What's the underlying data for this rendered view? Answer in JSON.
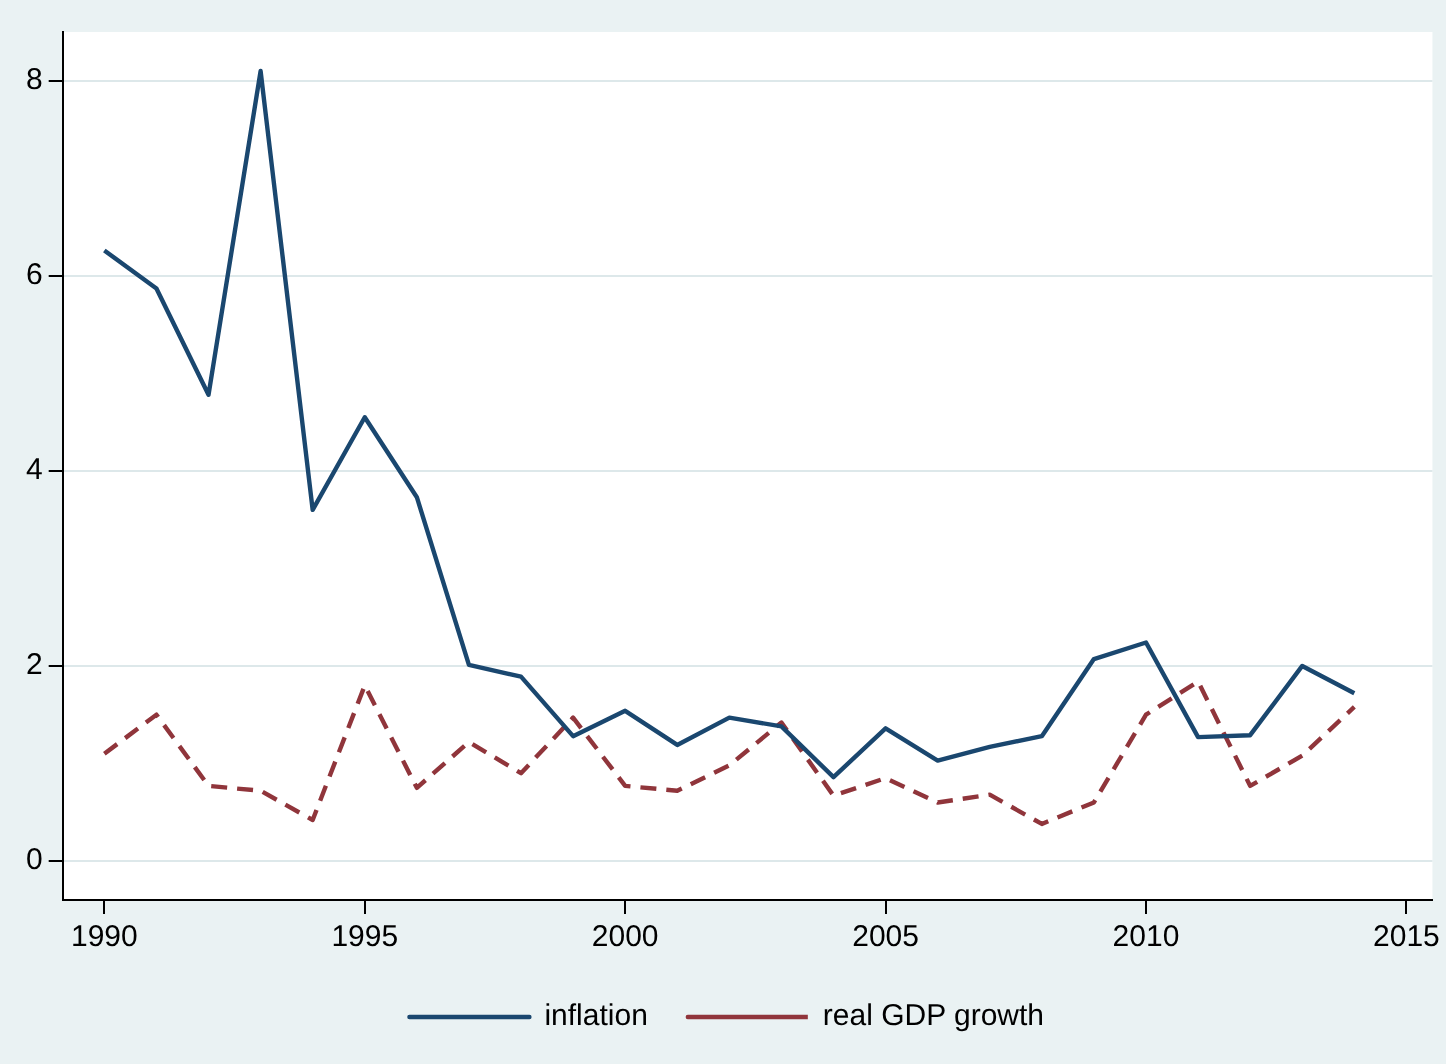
{
  "chart_data": {
    "type": "line",
    "x": [
      1990,
      1991,
      1992,
      1993,
      1994,
      1995,
      1996,
      1997,
      1998,
      1999,
      2000,
      2001,
      2002,
      2003,
      2004,
      2005,
      2006,
      2007,
      2008,
      2009,
      2010,
      2011,
      2012,
      2013,
      2014
    ],
    "series": [
      {
        "name": "inflation",
        "color": "#1a476f",
        "line_style": "solid",
        "values": [
          6.26,
          5.87,
          4.78,
          8.1,
          3.6,
          4.55,
          3.73,
          2.01,
          1.89,
          1.28,
          1.54,
          1.19,
          1.47,
          1.38,
          0.86,
          1.36,
          1.03,
          1.17,
          1.28,
          2.07,
          2.24,
          1.27,
          1.29,
          2.0,
          1.72
        ]
      },
      {
        "name": "real GDP growth",
        "color": "#90353b",
        "line_style": "dashed",
        "values": [
          1.1,
          1.5,
          0.77,
          0.72,
          0.42,
          1.8,
          0.75,
          1.22,
          0.9,
          1.47,
          0.77,
          0.72,
          0.98,
          1.42,
          0.67,
          0.85,
          0.6,
          0.68,
          0.38,
          0.6,
          1.5,
          1.84,
          0.77,
          1.08,
          1.58
        ]
      }
    ],
    "xlim": [
      1989.2,
      2015.5
    ],
    "xticks": [
      1990,
      1995,
      2000,
      2005,
      2010,
      2015
    ],
    "ylim": [
      -0.4,
      8.5
    ],
    "yticks": [
      0,
      2,
      4,
      6,
      8
    ],
    "grid": "y",
    "legend": "bottom",
    "marker": "none"
  }
}
